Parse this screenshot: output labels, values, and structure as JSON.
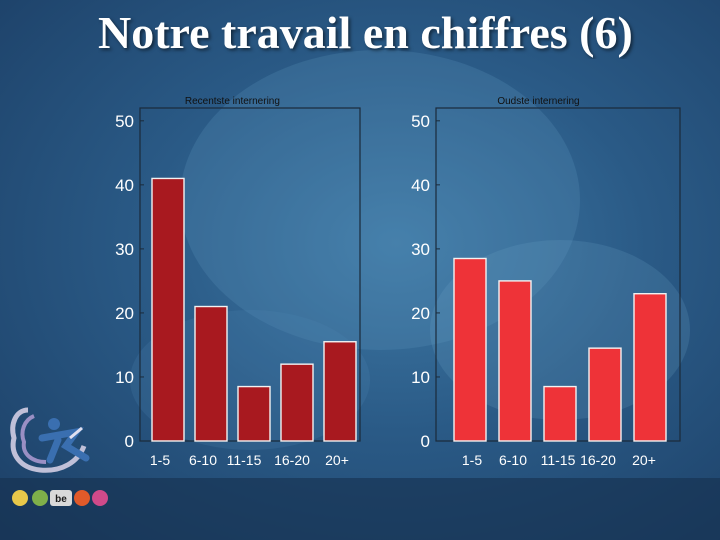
{
  "slide": {
    "title": "Notre travail en chiffres (6)"
  },
  "chart_data": [
    {
      "type": "bar",
      "title": "Recentste internering",
      "categories": [
        "1-5",
        "6-10",
        "11-15",
        "16-20",
        "20+"
      ],
      "values": [
        41,
        21,
        8.5,
        12,
        15.5
      ],
      "yticks": [
        0,
        10,
        20,
        30,
        40,
        50
      ],
      "ylim": [
        0,
        52
      ],
      "bar_color": "#a8191f",
      "grid": false
    },
    {
      "type": "bar",
      "title": "Oudste internering",
      "categories": [
        "1-5",
        "6-10",
        "11-15",
        "16-20",
        "20+"
      ],
      "values": [
        28.5,
        25,
        8.5,
        14.5,
        23
      ],
      "yticks": [
        0,
        10,
        20,
        30,
        40,
        50
      ],
      "ylim": [
        0,
        52
      ],
      "bar_color": "#ee3338",
      "grid": false
    }
  ]
}
